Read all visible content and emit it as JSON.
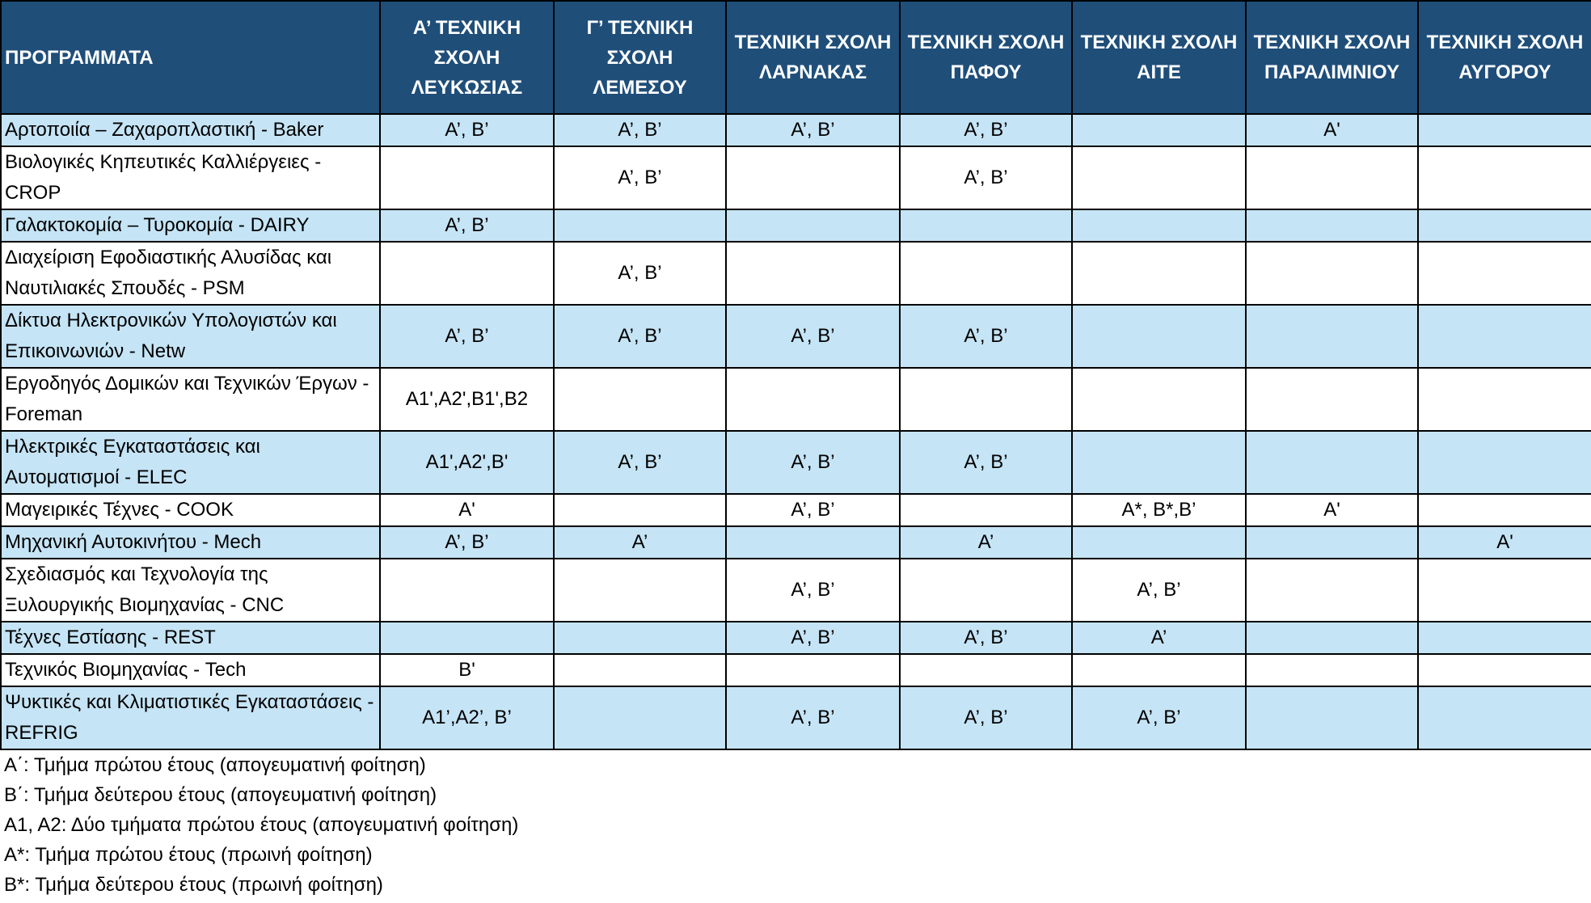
{
  "table": {
    "header": [
      "ΠΡΟΓΡΑΜΜΑΤΑ",
      "Α’ ΤΕΧΝΙΚΗ ΣΧΟΛΗ ΛΕΥΚΩΣΙΑΣ",
      "Γ’ ΤΕΧΝΙΚΗ ΣΧΟΛΗ ΛΕΜΕΣΟΥ",
      "ΤΕΧΝΙΚΗ ΣΧΟΛΗ ΛΑΡΝΑΚΑΣ",
      "ΤΕΧΝΙΚΗ ΣΧΟΛΗ ΠΑΦΟΥ",
      "ΤΕΧΝΙΚΗ ΣΧΟΛΗ ΑΙΤΕ",
      "ΤΕΧΝΙΚΗ ΣΧΟΛΗ ΠΑΡΑΛΙΜΝΙΟΥ",
      "ΤΕΧΝΙΚΗ ΣΧΟΛΗ ΑΥΓΟΡΟΥ"
    ],
    "rows": [
      [
        "Αρτοποιία – Ζαχαροπλαστική - Baker",
        "Α’, Β’",
        "Α’, Β’",
        "Α’, Β’",
        "Α’, Β’",
        null,
        "Α'",
        null
      ],
      [
        "Βιολογικές Κηπευτικές Καλλιέργειες - CROP",
        null,
        "Α’, Β’",
        null,
        "Α’, Β’",
        null,
        null,
        null
      ],
      [
        "Γαλακτοκομία – Τυροκομία - DAIRY",
        "Α’, Β’",
        null,
        null,
        null,
        null,
        null,
        null
      ],
      [
        "Διαχείριση Εφοδιαστικής Αλυσίδας και Ναυτιλιακές Σπουδές - PSM",
        null,
        "Α’, Β’",
        null,
        null,
        null,
        null,
        null
      ],
      [
        "Δίκτυα Ηλεκτρονικών Υπολογιστών και Επικοινωνιών - Netw",
        "Α’, Β’",
        "Α’, Β’",
        "Α’, Β’",
        "Α’, Β’",
        null,
        null,
        null
      ],
      [
        "Εργοδηγός Δομικών και Τεχνικών Έργων - Foreman",
        "Α1',Α2',Β1',Β2",
        null,
        null,
        null,
        null,
        null,
        null
      ],
      [
        "Ηλεκτρικές Εγκαταστάσεις και Αυτοματισμοί - ELEC",
        "Α1',Α2',Β'",
        "Α’, Β’",
        "Α’, Β’",
        "Α’, Β’",
        null,
        null,
        null
      ],
      [
        "Μαγειρικές Τέχνες - COOK",
        "Α'",
        null,
        "Α’, Β’",
        null,
        "Α*, Β*,Β’",
        "Α'",
        null
      ],
      [
        "Μηχανική Αυτοκινήτου - Mech",
        "Α’, Β’",
        "Α’",
        null,
        "Α’",
        null,
        null,
        "Α'"
      ],
      [
        "Σχεδιασμός και Τεχνολογία της Ξυλουργικής Βιομηχανίας - CNC",
        null,
        null,
        "Α’, Β’",
        null,
        "Α’, Β’",
        null,
        null
      ],
      [
        "Τέχνες Εστίασης - REST",
        null,
        null,
        "Α’, Β’",
        "Α’, Β’",
        "Α’",
        null,
        null
      ],
      [
        "Τεχνικός Βιομηχανίας - Tech",
        "Β'",
        null,
        null,
        null,
        null,
        null,
        null
      ],
      [
        "Ψυκτικές και Κλιματιστικές Εγκαταστάσεις - REFRIG",
        "Α1’,Α2’, Β’",
        null,
        "Α’, Β’",
        "Α’, Β’",
        "Α’, Β’",
        null,
        null
      ]
    ]
  },
  "legend": [
    "Α΄: Τμήμα πρώτου έτους (απογευματινή φοίτηση)",
    "Β΄: Τμήμα δεύτερου έτους (απογευματινή φοίτηση)",
    "Α1, Α2: Δύο τμήματα πρώτου έτους (απογευματινή φοίτηση)",
    "Α*: Τμήμα πρώτου έτους (πρωινή φοίτηση)",
    "Β*: Τμήμα δεύτερου έτους (πρωινή φοίτηση)"
  ]
}
